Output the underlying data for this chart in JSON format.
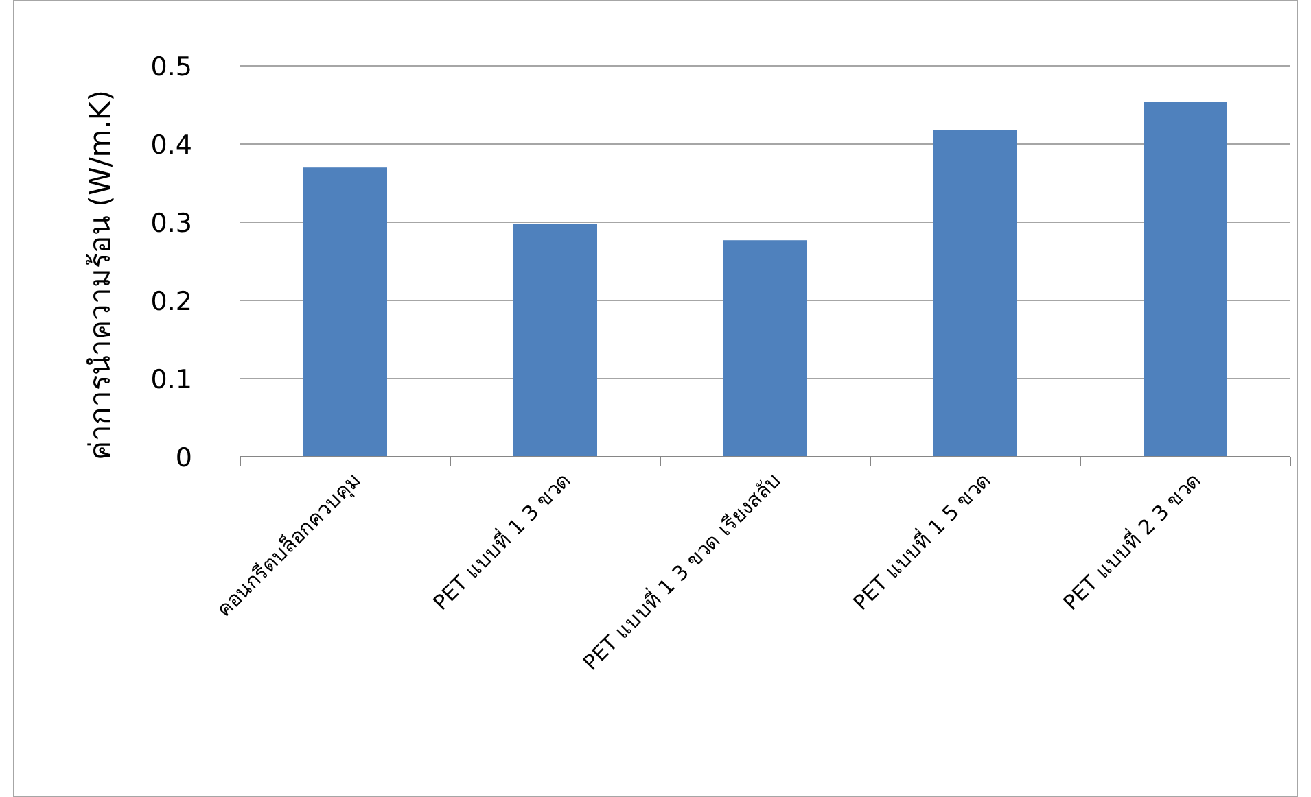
{
  "chart_data": {
    "type": "bar",
    "ylabel": "ค่าการนำความร้อน (W/m.K)",
    "categories": [
      "คอนกรีตบล็อกควบคุม",
      "PET แบบที่ 1 3 ขวด",
      "PET แบบที่ 1 3 ขวด เรียงสลับ",
      "PET แบบที่ 1 5 ขวด",
      "PET แบบที่ 2 3 ขวด"
    ],
    "values": [
      0.37,
      0.298,
      0.277,
      0.418,
      0.454
    ],
    "color": "#4f81bd",
    "ylim": [
      0,
      0.5
    ],
    "yticks": [
      0,
      0.1,
      0.2,
      0.3,
      0.4,
      0.5
    ],
    "grid": "y"
  }
}
